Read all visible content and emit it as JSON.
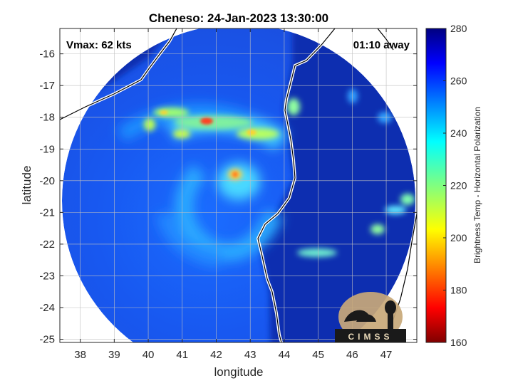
{
  "chart_data": {
    "type": "heatmap",
    "title": "Cheneso: 24-Jan-2023 13:30:00",
    "xlabel": "longitude",
    "ylabel": "latitude",
    "xlim": [
      37.4,
      47.9
    ],
    "ylim": [
      -25.1,
      -15.2
    ],
    "x_ticks": [
      38,
      39,
      40,
      41,
      42,
      43,
      44,
      45,
      46,
      47
    ],
    "y_ticks": [
      -16,
      -17,
      -18,
      -19,
      -20,
      -21,
      -22,
      -23,
      -24,
      -25
    ],
    "grid": true,
    "annotations": {
      "vmax": "Vmax: 62 kts",
      "time_away": "01:10 away"
    },
    "colorbar": {
      "label": "Brightness Temp - Horizontal Polarization",
      "range": [
        160,
        280
      ],
      "ticks": [
        160,
        180,
        200,
        220,
        240,
        260,
        280
      ],
      "colormap": "jet"
    },
    "logo_text": "CIMSS"
  }
}
